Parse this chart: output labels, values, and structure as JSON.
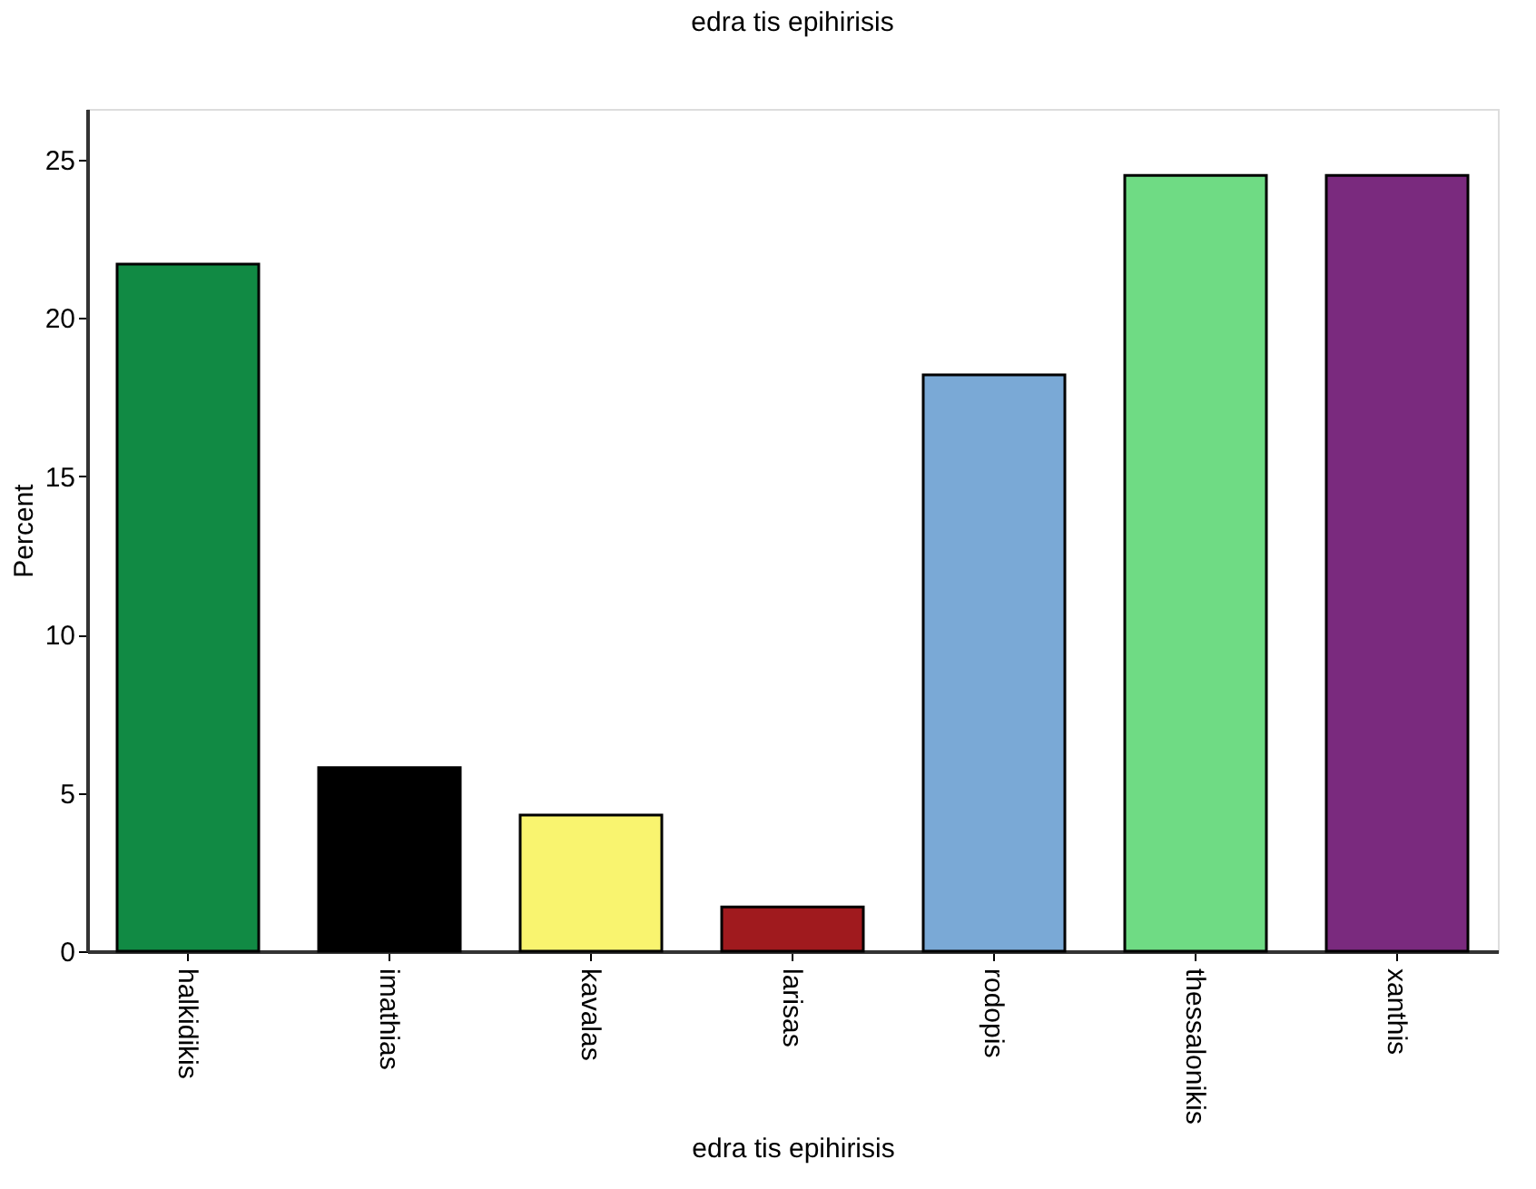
{
  "chart_data": {
    "type": "bar",
    "title": "edra tis epihirisis",
    "xlabel": "edra tis epihirisis",
    "ylabel": "Percent",
    "categories": [
      "halkidikis",
      "imathias",
      "kavalas",
      "larisas",
      "rodopis",
      "thessalonikis",
      "xanthis"
    ],
    "values": [
      21.7,
      5.8,
      4.3,
      1.4,
      18.2,
      24.5,
      24.5
    ],
    "colors": [
      "#118a44",
      "#000000",
      "#f9f46f",
      "#a01a1e",
      "#7aa9d6",
      "#6fdb84",
      "#7a2a7e"
    ],
    "ylim": [
      0,
      26.6
    ],
    "yticks": [
      0,
      5,
      10,
      15,
      20,
      25
    ],
    "grid": false
  }
}
